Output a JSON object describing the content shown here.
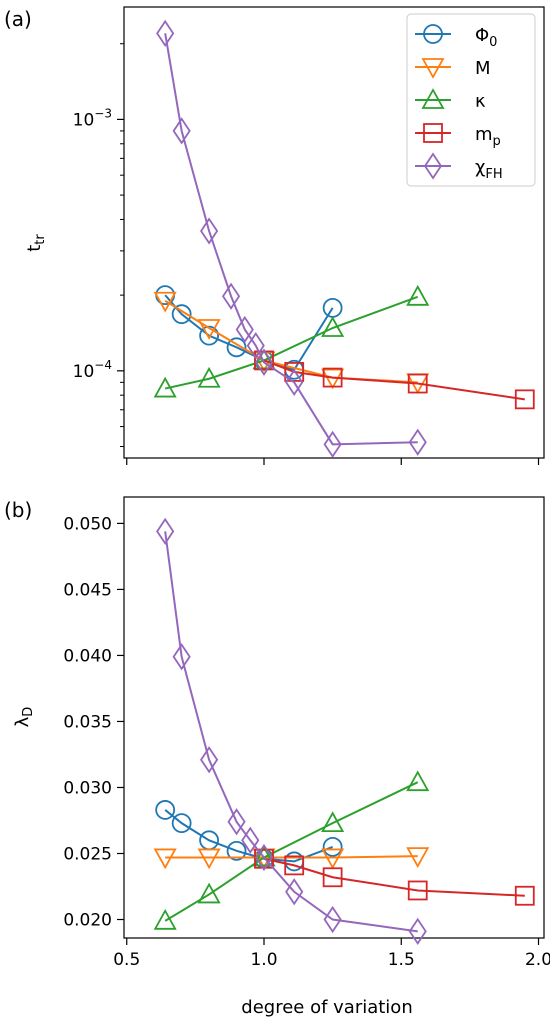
{
  "chart_data": [
    {
      "panel_label": "(a)",
      "type": "line",
      "ylabel": "t",
      "ylabel_sub": "tr",
      "yscale": "log",
      "ylim": [
        4.5e-05,
        0.0028
      ],
      "xlim": [
        0.49,
        2.02
      ],
      "yticks": [
        {
          "value": 0.001,
          "base": "10",
          "exp": "−3"
        },
        {
          "value": 0.0001,
          "base": "10",
          "exp": "−4"
        }
      ],
      "legend": {
        "placement": "top-right"
      },
      "series": [
        {
          "name": "Φ",
          "name_sub": "0",
          "color": "#1f77b4",
          "marker": "circle",
          "x": [
            0.64,
            0.7,
            0.8,
            0.9,
            1.0,
            1.11,
            1.25
          ],
          "y": [
            0.0002,
            0.000168,
            0.000138,
            0.000124,
            0.00011,
            0.000101,
            0.000178
          ]
        },
        {
          "name": "M",
          "name_sub": "",
          "color": "#ff7f0e",
          "marker": "triangle-down",
          "x": [
            0.64,
            0.8,
            1.0,
            1.25,
            1.56
          ],
          "y": [
            0.00019,
            0.000148,
            0.00011,
            9.4e-05,
            9e-05
          ]
        },
        {
          "name": "κ",
          "name_sub": "",
          "color": "#2ca02c",
          "marker": "triangle-up",
          "x": [
            0.64,
            0.8,
            1.0,
            1.25,
            1.56
          ],
          "y": [
            8.5e-05,
            9.3e-05,
            0.00011,
            0.000148,
            0.000197
          ]
        },
        {
          "name": "m",
          "name_sub": "p",
          "color": "#d62728",
          "marker": "square",
          "x": [
            1.0,
            1.11,
            1.25,
            1.56,
            1.95
          ],
          "y": [
            0.00011,
            9.9e-05,
            9.4e-05,
            8.9e-05,
            7.7e-05
          ]
        },
        {
          "name": "χ",
          "name_sub": "FH",
          "color": "#9467bd",
          "marker": "diamond",
          "x": [
            0.64,
            0.7,
            0.8,
            0.88,
            0.93,
            0.97,
            1.0,
            1.11,
            1.25,
            1.56
          ],
          "y": [
            0.0022,
            0.0009,
            0.00036,
            0.000198,
            0.000146,
            0.000126,
            0.000108,
            9e-05,
            5.1e-05,
            5.2e-05
          ]
        }
      ]
    },
    {
      "panel_label": "(b)",
      "type": "line",
      "ylabel": "λ",
      "ylabel_sub": "D",
      "xlabel": "degree of variation",
      "yscale": "linear",
      "ylim": [
        0.0186,
        0.052
      ],
      "xlim": [
        0.49,
        2.02
      ],
      "yticks": [
        "0.020",
        "0.025",
        "0.030",
        "0.035",
        "0.040",
        "0.045",
        "0.050"
      ],
      "xticks": [
        "0.5",
        "1.0",
        "1.5",
        "2.0"
      ],
      "series": [
        {
          "name": "Φ",
          "name_sub": "0",
          "color": "#1f77b4",
          "marker": "circle",
          "x": [
            0.64,
            0.7,
            0.8,
            0.9,
            1.0,
            1.11,
            1.25
          ],
          "y": [
            0.0283,
            0.0273,
            0.026,
            0.0252,
            0.0246,
            0.0244,
            0.0255
          ]
        },
        {
          "name": "M",
          "name_sub": "",
          "color": "#ff7f0e",
          "marker": "triangle-down",
          "x": [
            0.64,
            0.8,
            1.0,
            1.25,
            1.56
          ],
          "y": [
            0.0247,
            0.0247,
            0.0247,
            0.0247,
            0.0248
          ]
        },
        {
          "name": "κ",
          "name_sub": "",
          "color": "#2ca02c",
          "marker": "triangle-up",
          "x": [
            0.64,
            0.8,
            1.0,
            1.25,
            1.56
          ],
          "y": [
            0.0199,
            0.0219,
            0.0247,
            0.0273,
            0.0304
          ]
        },
        {
          "name": "m",
          "name_sub": "p",
          "color": "#d62728",
          "marker": "square",
          "x": [
            1.0,
            1.11,
            1.25,
            1.56,
            1.95
          ],
          "y": [
            0.0246,
            0.0241,
            0.0232,
            0.0222,
            0.0218
          ]
        },
        {
          "name": "χ",
          "name_sub": "FH",
          "color": "#9467bd",
          "marker": "diamond",
          "x": [
            0.64,
            0.7,
            0.8,
            0.9,
            0.95,
            1.0,
            1.11,
            1.25,
            1.56
          ],
          "y": [
            0.0494,
            0.0399,
            0.0321,
            0.0274,
            0.026,
            0.0247,
            0.0221,
            0.02,
            0.0191
          ]
        }
      ]
    }
  ]
}
